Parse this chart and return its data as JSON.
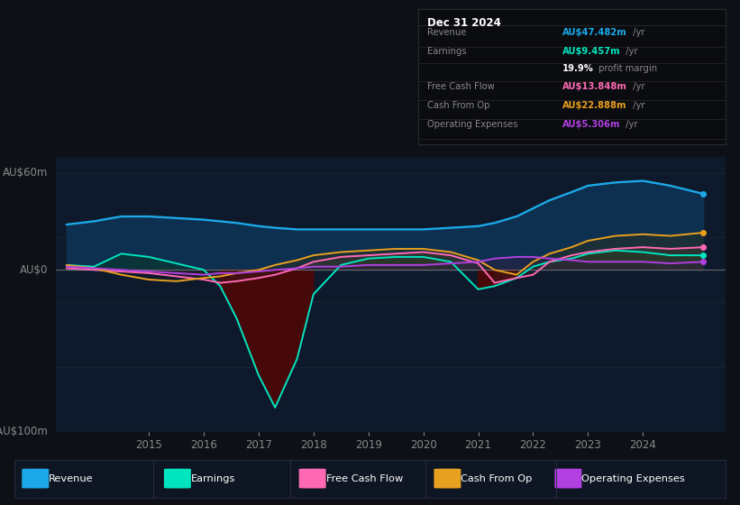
{
  "bg_color": "#0d1117",
  "plot_bg_color": "#0e1a2b",
  "ylim": [
    -100,
    70
  ],
  "xlim": [
    2013.3,
    2025.5
  ],
  "x_ticks": [
    2015,
    2016,
    2017,
    2018,
    2019,
    2020,
    2021,
    2022,
    2023,
    2024
  ],
  "years": [
    2013.5,
    2014.0,
    2014.5,
    2015.0,
    2015.5,
    2016.0,
    2016.3,
    2016.6,
    2017.0,
    2017.3,
    2017.7,
    2018.0,
    2018.5,
    2019.0,
    2019.5,
    2020.0,
    2020.5,
    2021.0,
    2021.3,
    2021.7,
    2022.0,
    2022.3,
    2022.7,
    2023.0,
    2023.5,
    2024.0,
    2024.5,
    2025.1
  ],
  "revenue": [
    28,
    30,
    33,
    33,
    32,
    31,
    30,
    29,
    27,
    26,
    25,
    25,
    25,
    25,
    25,
    25,
    26,
    27,
    29,
    33,
    38,
    43,
    48,
    52,
    54,
    55,
    52,
    47
  ],
  "earnings": [
    3,
    2,
    10,
    8,
    4,
    0,
    -10,
    -30,
    -65,
    -85,
    -55,
    -15,
    3,
    7,
    8,
    8,
    5,
    -12,
    -10,
    -5,
    2,
    5,
    7,
    10,
    12,
    11,
    9,
    9
  ],
  "free_cash_flow": [
    1,
    0,
    -1,
    -2,
    -4,
    -6,
    -8,
    -7,
    -5,
    -3,
    1,
    5,
    8,
    9,
    10,
    11,
    9,
    4,
    -8,
    -5,
    -3,
    5,
    9,
    11,
    13,
    14,
    13,
    14
  ],
  "cash_from_op": [
    3,
    1,
    -3,
    -6,
    -7,
    -5,
    -4,
    -2,
    0,
    3,
    6,
    9,
    11,
    12,
    13,
    13,
    11,
    6,
    0,
    -3,
    5,
    10,
    14,
    18,
    21,
    22,
    21,
    23
  ],
  "operating_expenses": [
    2,
    1,
    0,
    -1,
    -2,
    -3,
    -2,
    -2,
    -1,
    0,
    1,
    2,
    2,
    3,
    3,
    3,
    4,
    5,
    7,
    8,
    8,
    7,
    6,
    5,
    5,
    5,
    4,
    5
  ],
  "revenue_color": "#1ca8e8",
  "earnings_color": "#00e5c0",
  "free_cash_flow_color": "#ff69b4",
  "cash_from_op_color": "#e8a020",
  "operating_expenses_color": "#b040e0",
  "revenue_fill_color": "#0d3050",
  "earnings_fill_pos_color": "#0a3535",
  "earnings_fill_neg_color": "#4a0808",
  "fcf_fill_pos_color": "#404040",
  "fcf_fill_neg_color": "#3a2020",
  "op_fill_pos_color": "#2d1f40",
  "cash_fill_pos_color": "#3d2d00",
  "zero_line_color": "#888888",
  "grid_color": "#1a2535",
  "info_box": {
    "title": "Dec 31 2024",
    "rows": [
      {
        "label": "Revenue",
        "value": "AU$47.482m",
        "unit": " /yr",
        "color": "#1ca8e8"
      },
      {
        "label": "Earnings",
        "value": "AU$9.457m",
        "unit": " /yr",
        "color": "#00e5c0"
      },
      {
        "label": "",
        "value": "19.9%",
        "unit": " profit margin",
        "color": "#ffffff"
      },
      {
        "label": "Free Cash Flow",
        "value": "AU$13.848m",
        "unit": " /yr",
        "color": "#ff69b4"
      },
      {
        "label": "Cash From Op",
        "value": "AU$22.888m",
        "unit": " /yr",
        "color": "#e8a020"
      },
      {
        "label": "Operating Expenses",
        "value": "AU$5.306m",
        "unit": " /yr",
        "color": "#b040e0"
      }
    ]
  },
  "legend": [
    {
      "label": "Revenue",
      "color": "#1ca8e8"
    },
    {
      "label": "Earnings",
      "color": "#00e5c0"
    },
    {
      "label": "Free Cash Flow",
      "color": "#ff69b4"
    },
    {
      "label": "Cash From Op",
      "color": "#e8a020"
    },
    {
      "label": "Operating Expenses",
      "color": "#b040e0"
    }
  ]
}
